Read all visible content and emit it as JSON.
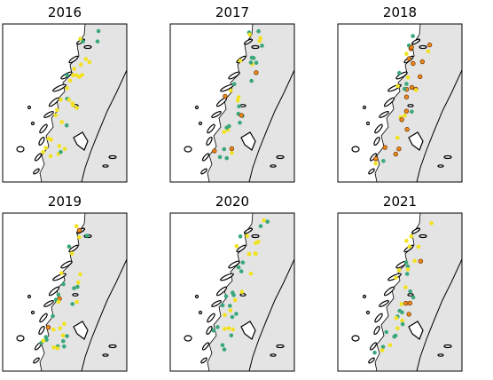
{
  "panels": [
    {
      "title": "2016"
    },
    {
      "title": "2017"
    },
    {
      "title": "2018"
    },
    {
      "title": "2019"
    },
    {
      "title": "2020"
    },
    {
      "title": "2021"
    }
  ]
}
